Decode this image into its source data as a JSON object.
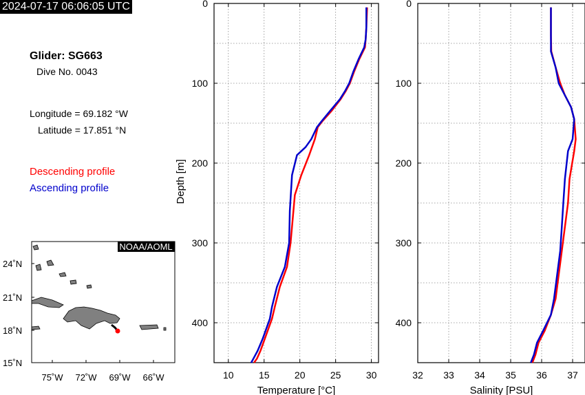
{
  "header": {
    "timestamp": "2024-07-17 06:06:05 UTC",
    "glider": "Glider: SG663",
    "dive": "Dive No. 0043",
    "longitude": "Longitude = 69.182 °W",
    "latitude": "Latitude = 17.851 °N"
  },
  "legend": {
    "descending": "Descending profile",
    "ascending": "Ascending profile"
  },
  "colors": {
    "descending": "#ff0000",
    "ascending": "#0000cc",
    "land": "#808080"
  },
  "map": {
    "credit": "NOAA/AOML",
    "lat_labels": [
      "24˚N",
      "21˚N",
      "18˚N",
      "15˚N"
    ],
    "lon_labels": [
      "75˚W",
      "72˚W",
      "69˚W",
      "66˚W"
    ],
    "glider_position": {
      "lon": -69.182,
      "lat": 17.851
    }
  },
  "chart_data": [
    {
      "type": "line",
      "xlabel": "Temperature [°C]",
      "ylabel": "Depth [m]",
      "xlim": [
        8,
        31
      ],
      "ylim": [
        0,
        450
      ],
      "y_inverted": true,
      "xticks": [
        "10",
        "15",
        "20",
        "25",
        "30"
      ],
      "yticks": [
        "0",
        "100",
        "200",
        "300",
        "400"
      ],
      "grid": true,
      "series": [
        {
          "name": "Descending profile",
          "color": "#ff0000",
          "x": [
            29.4,
            29.3,
            29.2,
            29.1,
            28.3,
            27.6,
            27.0,
            26.4,
            25.7,
            24.4,
            23.1,
            22.5,
            22.1,
            21.3,
            20.2,
            19.3,
            19.0,
            18.7,
            18.2,
            17.2,
            16.5,
            16.1,
            15.1,
            14.5,
            14.0,
            13.6
          ],
          "y": [
            5,
            30,
            45,
            55,
            70,
            85,
            100,
            110,
            120,
            135,
            148,
            155,
            170,
            190,
            215,
            240,
            270,
            300,
            330,
            355,
            380,
            395,
            420,
            435,
            445,
            450
          ]
        },
        {
          "name": "Ascending profile",
          "color": "#0000cc",
          "x": [
            29.3,
            29.3,
            29.2,
            29.0,
            28.2,
            27.5,
            26.9,
            26.3,
            25.6,
            24.2,
            23.0,
            22.4,
            21.6,
            20.8,
            19.6,
            18.9,
            18.6,
            18.5,
            17.9,
            16.8,
            16.1,
            15.8,
            14.8,
            14.1,
            13.5,
            13.2
          ],
          "y": [
            5,
            30,
            45,
            55,
            70,
            85,
            100,
            110,
            120,
            135,
            148,
            155,
            170,
            180,
            190,
            215,
            260,
            300,
            330,
            355,
            380,
            395,
            420,
            435,
            445,
            450
          ]
        }
      ]
    },
    {
      "type": "line",
      "xlabel": "Salinity [PSU]",
      "ylabel": "",
      "xlim": [
        32,
        37.4
      ],
      "ylim": [
        0,
        450
      ],
      "y_inverted": true,
      "xticks": [
        "32",
        "33",
        "34",
        "35",
        "36",
        "37"
      ],
      "yticks": [
        "0",
        "100",
        "200",
        "300",
        "400"
      ],
      "grid": true,
      "series": [
        {
          "name": "Descending profile",
          "color": "#ff0000",
          "x": [
            36.3,
            36.3,
            36.31,
            36.45,
            36.6,
            36.75,
            36.95,
            37.05,
            37.1,
            37.05,
            36.9,
            36.85,
            36.75,
            36.65,
            36.55,
            36.45,
            36.3,
            36.1,
            35.9,
            35.8,
            35.7
          ],
          "y": [
            5,
            40,
            60,
            80,
            100,
            115,
            130,
            145,
            170,
            185,
            220,
            250,
            280,
            310,
            340,
            370,
            390,
            410,
            425,
            440,
            450
          ]
        },
        {
          "name": "Ascending profile",
          "color": "#0000cc",
          "x": [
            36.3,
            36.3,
            36.3,
            36.45,
            36.55,
            36.75,
            36.95,
            37.05,
            37.0,
            36.85,
            36.75,
            36.7,
            36.65,
            36.6,
            36.5,
            36.4,
            36.3,
            36.05,
            35.85,
            35.75,
            35.65
          ],
          "y": [
            5,
            40,
            60,
            80,
            100,
            115,
            130,
            145,
            170,
            185,
            220,
            250,
            280,
            310,
            340,
            370,
            390,
            410,
            425,
            440,
            450
          ]
        }
      ]
    }
  ]
}
